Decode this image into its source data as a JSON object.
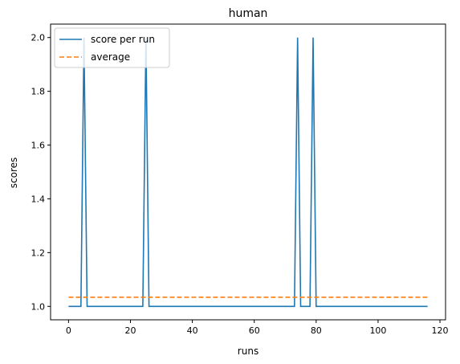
{
  "chart_data": {
    "type": "line",
    "title": "human",
    "xlabel": "runs",
    "ylabel": "scores",
    "xlim": [
      -5.8,
      121.8
    ],
    "ylim": [
      0.95,
      2.05
    ],
    "xticks": [
      0,
      20,
      40,
      60,
      80,
      100,
      120
    ],
    "yticks": [
      1.0,
      1.2,
      1.4,
      1.6,
      1.8,
      2.0
    ],
    "xtick_labels": [
      "0",
      "20",
      "40",
      "60",
      "80",
      "100",
      "120"
    ],
    "ytick_labels": [
      "1.0",
      "1.2",
      "1.4",
      "1.6",
      "1.8",
      "2.0"
    ],
    "grid": false,
    "legend_position": "top-left",
    "colors": {
      "score": "#1f77b4",
      "average": "#ff7f0e"
    },
    "series": [
      {
        "name": "score per run",
        "style": "solid",
        "x": [
          0,
          4,
          5,
          6,
          24,
          25,
          26,
          73,
          74,
          75,
          78,
          79,
          80,
          116
        ],
        "y": [
          1,
          1,
          2,
          1,
          1,
          2,
          1,
          1,
          2,
          1,
          1,
          2,
          1,
          1
        ]
      },
      {
        "name": "average",
        "style": "dashed",
        "x": [
          0,
          116
        ],
        "y": [
          1.034,
          1.034
        ]
      }
    ]
  }
}
